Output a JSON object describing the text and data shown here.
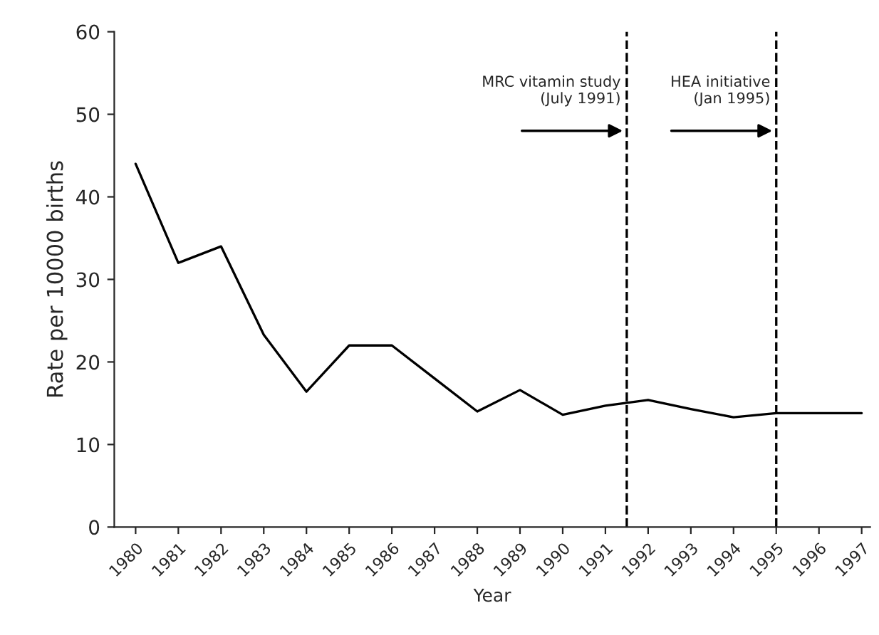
{
  "chart_data": {
    "type": "line",
    "xlabel": "Year",
    "ylabel": "Rate per 10000 births",
    "x": [
      1980,
      1981,
      1982,
      1983,
      1984,
      1985,
      1986,
      1987,
      1988,
      1989,
      1990,
      1991,
      1992,
      1993,
      1994,
      1995,
      1996,
      1997
    ],
    "series": [
      {
        "color": "#000000",
        "values": [
          44,
          32,
          34,
          23.3,
          16.4,
          22,
          22,
          18,
          14,
          16.6,
          13.6,
          14.7,
          15.4,
          14.3,
          13.3,
          13.8,
          13.8,
          13.8
        ]
      }
    ],
    "xlim": [
      1979.5,
      1997.2
    ],
    "xticks": [
      1980,
      1981,
      1982,
      1983,
      1984,
      1985,
      1986,
      1987,
      1988,
      1989,
      1990,
      1991,
      1992,
      1993,
      1994,
      1995,
      1996,
      1997
    ],
    "ylim": [
      0,
      60
    ],
    "yticks": [
      0,
      10,
      20,
      30,
      40,
      50,
      60
    ],
    "ref_lines": [
      {
        "axis": "x",
        "value": 1991.5,
        "label": "MRC vitamin study\n(July 1991)",
        "color": "#000000",
        "line_style": "dashed"
      },
      {
        "axis": "x",
        "value": 1995,
        "label": "HEA initiative\n(Jan 1995)",
        "color": "#000000",
        "line_style": "dashed"
      }
    ],
    "grid": false,
    "legend": false,
    "marker": "none",
    "line_style": "solid"
  }
}
